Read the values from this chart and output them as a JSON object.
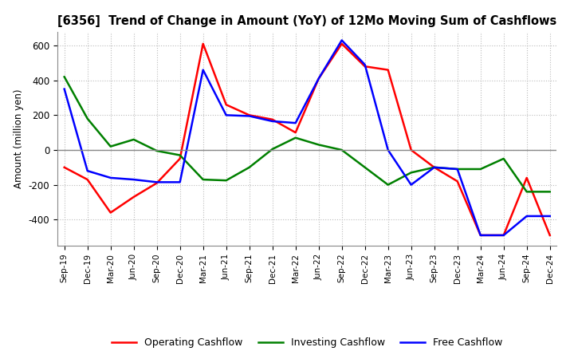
{
  "title": "[6356]  Trend of Change in Amount (YoY) of 12Mo Moving Sum of Cashflows",
  "ylabel": "Amount (million yen)",
  "x_labels": [
    "Sep-19",
    "Dec-19",
    "Mar-20",
    "Jun-20",
    "Sep-20",
    "Dec-20",
    "Mar-21",
    "Jun-21",
    "Sep-21",
    "Dec-21",
    "Mar-22",
    "Jun-22",
    "Sep-22",
    "Dec-22",
    "Mar-23",
    "Jun-23",
    "Sep-23",
    "Dec-23",
    "Mar-24",
    "Jun-24",
    "Sep-24",
    "Dec-24"
  ],
  "operating": [
    -100,
    -170,
    -360,
    -270,
    -190,
    -50,
    610,
    260,
    200,
    175,
    100,
    410,
    610,
    480,
    460,
    0,
    -100,
    -180,
    -490,
    -490,
    -160,
    -490
  ],
  "investing": [
    420,
    180,
    20,
    60,
    -5,
    -30,
    -170,
    -175,
    -100,
    5,
    70,
    30,
    0,
    -100,
    -200,
    -130,
    -100,
    -110,
    -110,
    -50,
    -240,
    -240
  ],
  "free": [
    350,
    -120,
    -160,
    -170,
    -185,
    -185,
    460,
    200,
    195,
    165,
    155,
    410,
    630,
    490,
    0,
    -200,
    -100,
    -110,
    -490,
    -490,
    -380,
    -380
  ],
  "ylim": [
    -550,
    680
  ],
  "yticks": [
    -400,
    -200,
    0,
    200,
    400,
    600
  ],
  "colors": {
    "operating": "#ff0000",
    "investing": "#008000",
    "free": "#0000ff"
  },
  "legend_labels": [
    "Operating Cashflow",
    "Investing Cashflow",
    "Free Cashflow"
  ],
  "bg_color": "#ffffff",
  "grid_color": "#bbbbbb"
}
